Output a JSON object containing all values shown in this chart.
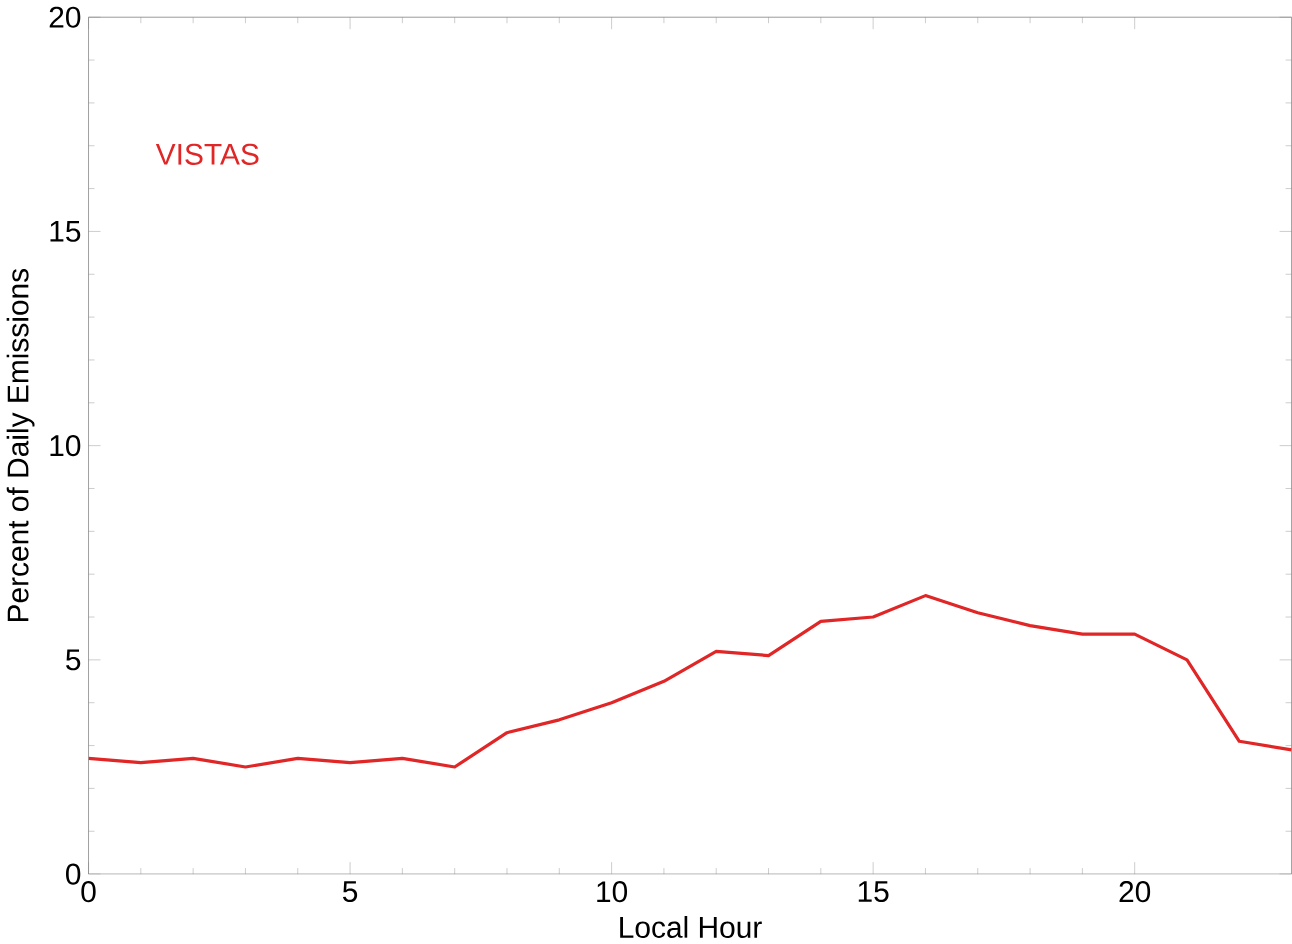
{
  "chart_data": {
    "type": "line",
    "xlabel": "Local Hour",
    "ylabel": "Percent of Daily Emissions",
    "x": [
      0,
      1,
      2,
      3,
      4,
      5,
      6,
      7,
      8,
      9,
      10,
      11,
      12,
      13,
      14,
      15,
      16,
      17,
      18,
      19,
      20,
      21,
      22,
      23
    ],
    "series": [
      {
        "name": "VISTAS",
        "color": "#e02626",
        "values": [
          2.7,
          2.6,
          2.7,
          2.5,
          2.7,
          2.6,
          2.7,
          2.5,
          3.3,
          3.6,
          4.0,
          4.5,
          5.2,
          5.1,
          5.9,
          6.0,
          6.5,
          6.1,
          5.8,
          5.6,
          5.6,
          5.0,
          3.1,
          2.9
        ]
      }
    ],
    "xlim": [
      0,
      23
    ],
    "ylim": [
      0,
      20
    ],
    "xticks": [
      0,
      5,
      10,
      15,
      20
    ],
    "yticks": [
      0,
      5,
      10,
      15,
      20
    ],
    "grid": false,
    "legend": false,
    "marker": "none",
    "line_style": "solid"
  }
}
